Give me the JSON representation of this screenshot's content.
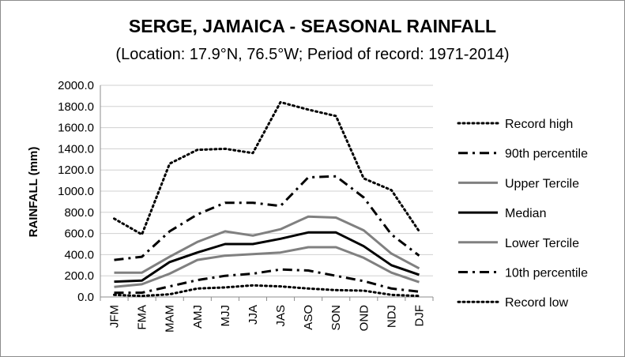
{
  "chart_data": {
    "type": "line",
    "title": "SERGE, JAMAICA - SEASONAL RAINFALL",
    "subtitle": "(Location: 17.9°N, 76.5°W; Period of record: 1971-2014)",
    "ylabel": "RAINFALL (mm)",
    "xlabel": "",
    "ylim": [
      0,
      2000
    ],
    "ytick_step": 200,
    "ytick_labels": [
      "0.0",
      "200.0",
      "400.0",
      "600.0",
      "800.0",
      "1000.0",
      "1200.0",
      "1400.0",
      "1600.0",
      "1800.0",
      "2000.0"
    ],
    "grid": true,
    "legend_position": "right",
    "categories": [
      "JFM",
      "FMA",
      "MAM",
      "AMJ",
      "MJJ",
      "JJA",
      "JAS",
      "ASO",
      "SON",
      "OND",
      "NDJ",
      "DJF"
    ],
    "series": [
      {
        "name": "Record high",
        "style": "dotted",
        "color": "#000000",
        "values": [
          740,
          590,
          1260,
          1390,
          1400,
          1360,
          1840,
          1770,
          1710,
          1120,
          1010,
          620
        ]
      },
      {
        "name": "90th percentile",
        "style": "dashdot",
        "color": "#000000",
        "values": [
          350,
          380,
          620,
          780,
          890,
          890,
          860,
          1130,
          1140,
          940,
          590,
          390
        ]
      },
      {
        "name": "Upper Tercile",
        "style": "solid",
        "color": "#808080",
        "values": [
          230,
          230,
          380,
          520,
          620,
          580,
          640,
          760,
          750,
          630,
          410,
          270
        ]
      },
      {
        "name": "Median",
        "style": "solid",
        "color": "#000000",
        "values": [
          145,
          155,
          330,
          420,
          500,
          500,
          550,
          610,
          610,
          480,
          300,
          210
        ]
      },
      {
        "name": "Lower Tercile",
        "style": "solid",
        "color": "#808080",
        "values": [
          95,
          120,
          220,
          350,
          390,
          405,
          420,
          470,
          470,
          370,
          230,
          140
        ]
      },
      {
        "name": "10th percentile",
        "style": "dashdot",
        "color": "#000000",
        "values": [
          40,
          40,
          100,
          160,
          200,
          220,
          260,
          250,
          200,
          150,
          80,
          50
        ]
      },
      {
        "name": "Record low",
        "style": "dotted",
        "color": "#000000",
        "values": [
          20,
          10,
          25,
          80,
          90,
          110,
          100,
          80,
          65,
          60,
          20,
          10
        ]
      }
    ]
  }
}
